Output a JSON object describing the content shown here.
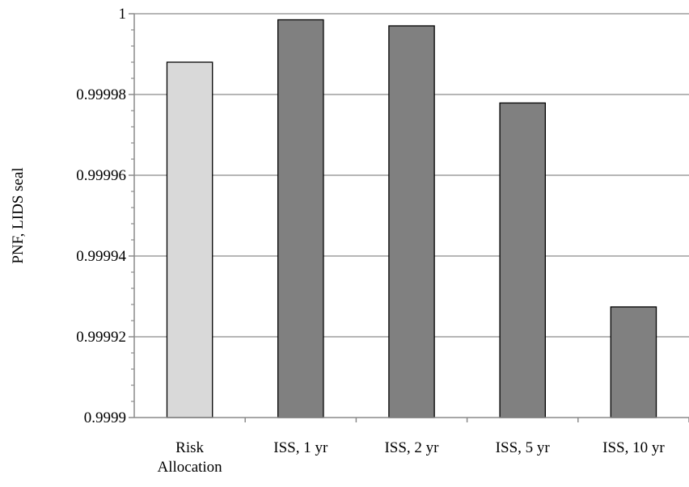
{
  "chart_data": {
    "type": "bar",
    "categories": [
      [
        "Risk",
        "Allocation"
      ],
      [
        "ISS, 1 yr"
      ],
      [
        "ISS, 2 yr"
      ],
      [
        "ISS, 5 yr"
      ],
      [
        "ISS, 10 yr"
      ]
    ],
    "values": [
      0.999988,
      0.9999985,
      0.999997,
      0.9999779,
      0.9999274
    ],
    "bar_colors": [
      "#d9d9d9",
      "#808080",
      "#808080",
      "#808080",
      "#808080"
    ],
    "title": "",
    "xlabel": "",
    "ylabel": "PNF, LIDS seal",
    "ylim": [
      0.9999,
      1.0
    ],
    "yticks": [
      0.9999,
      0.99992,
      0.99994,
      0.99996,
      0.99998,
      1.0
    ],
    "ytick_labels": [
      "0.9999",
      "0.99992",
      "0.99994",
      "0.99996",
      "0.99998",
      "1"
    ],
    "minor_ticks_per_major": 5,
    "grid": true,
    "legend": "none"
  }
}
